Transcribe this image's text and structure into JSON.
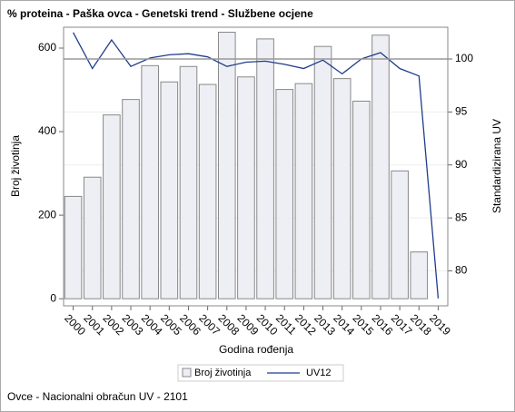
{
  "chart_data": {
    "type": "bar_line",
    "title": "% proteina - Paška ovca - Genetski trend - Službene ocjene",
    "x_label": "Godina rođenja",
    "y_label": "Broj životinja",
    "y2_label": "Standardizirana UV",
    "footer": "Ovce - Nacionalni obračun UV - 2101",
    "categories": [
      "2000",
      "2001",
      "2002",
      "2003",
      "2004",
      "2005",
      "2006",
      "2007",
      "2008",
      "2009",
      "2010",
      "2011",
      "2012",
      "2013",
      "2014",
      "2015",
      "2016",
      "2017",
      "2018",
      "2019"
    ],
    "series": [
      {
        "name": "Broj životinja",
        "type": "bar",
        "color": "#eeeff5",
        "values": [
          245,
          291,
          440,
          477,
          558,
          519,
          556,
          513,
          638,
          531,
          622,
          501,
          515,
          604,
          527,
          473,
          631,
          306,
          112,
          0
        ]
      },
      {
        "name": "UV12",
        "type": "line",
        "axis": "y2",
        "color": "#1f3d8c",
        "values": [
          102.5,
          99.1,
          101.8,
          99.3,
          100.1,
          100.4,
          100.5,
          100.2,
          99.3,
          99.7,
          99.8,
          99.5,
          99.1,
          99.9,
          98.6,
          100.0,
          100.6,
          99.1,
          98.4,
          77.4
        ]
      }
    ],
    "ylim": [
      -17,
      650
    ],
    "yticks": [
      0,
      200,
      400,
      600
    ],
    "y2lim": [
      76.7,
      103
    ],
    "y2ticks": [
      80,
      85,
      90,
      95,
      100
    ],
    "reference_line": {
      "axis": "y2",
      "value": 100
    },
    "grid": true,
    "legend": "bottom"
  }
}
